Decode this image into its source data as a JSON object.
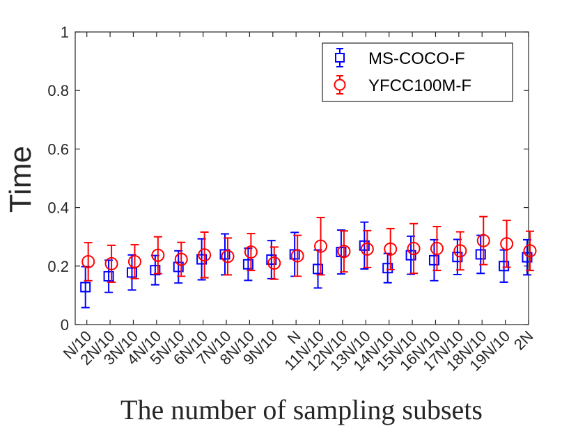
{
  "chart_data": {
    "type": "scatter",
    "title": "",
    "xlabel": "The number of sampling subsets",
    "ylabel": "Time",
    "ylim": [
      0,
      1
    ],
    "yticks": [
      0,
      0.2,
      0.4,
      0.6,
      0.8,
      1
    ],
    "ytick_labels": [
      "0",
      "0.2",
      "0.4",
      "0.6",
      "0.8",
      "1"
    ],
    "categories": [
      "N/10",
      "2N/10",
      "3N/10",
      "4N/10",
      "5N/10",
      "6N/10",
      "7N/10",
      "8N/10",
      "9N/10",
      "N",
      "11N/10",
      "12N/10",
      "13N/10",
      "14N/10",
      "15N/10",
      "16N/10",
      "17N/10",
      "18N/10",
      "19N/10",
      "2N"
    ],
    "legend_position": "top-right",
    "grid": false,
    "series": [
      {
        "name": "MS-COCO-F",
        "marker": "square",
        "color": "#0000ff",
        "values": [
          0.128,
          0.165,
          0.178,
          0.186,
          0.197,
          0.223,
          0.24,
          0.206,
          0.222,
          0.24,
          0.19,
          0.248,
          0.27,
          0.193,
          0.237,
          0.22,
          0.231,
          0.24,
          0.2,
          0.23
        ],
        "errors": [
          0.07,
          0.055,
          0.06,
          0.05,
          0.055,
          0.07,
          0.07,
          0.055,
          0.065,
          0.075,
          0.065,
          0.075,
          0.08,
          0.05,
          0.065,
          0.07,
          0.06,
          0.065,
          0.055,
          0.06
        ]
      },
      {
        "name": "YFCC100M-F",
        "marker": "circle",
        "color": "#ff0000",
        "values": [
          0.215,
          0.208,
          0.215,
          0.237,
          0.223,
          0.238,
          0.233,
          0.248,
          0.21,
          0.235,
          0.268,
          0.25,
          0.258,
          0.258,
          0.26,
          0.26,
          0.252,
          0.287,
          0.276,
          0.252
        ],
        "errors": [
          0.065,
          0.063,
          0.058,
          0.063,
          0.058,
          0.078,
          0.063,
          0.063,
          0.055,
          0.07,
          0.098,
          0.07,
          0.063,
          0.07,
          0.085,
          0.075,
          0.065,
          0.082,
          0.08,
          0.067
        ]
      }
    ]
  }
}
